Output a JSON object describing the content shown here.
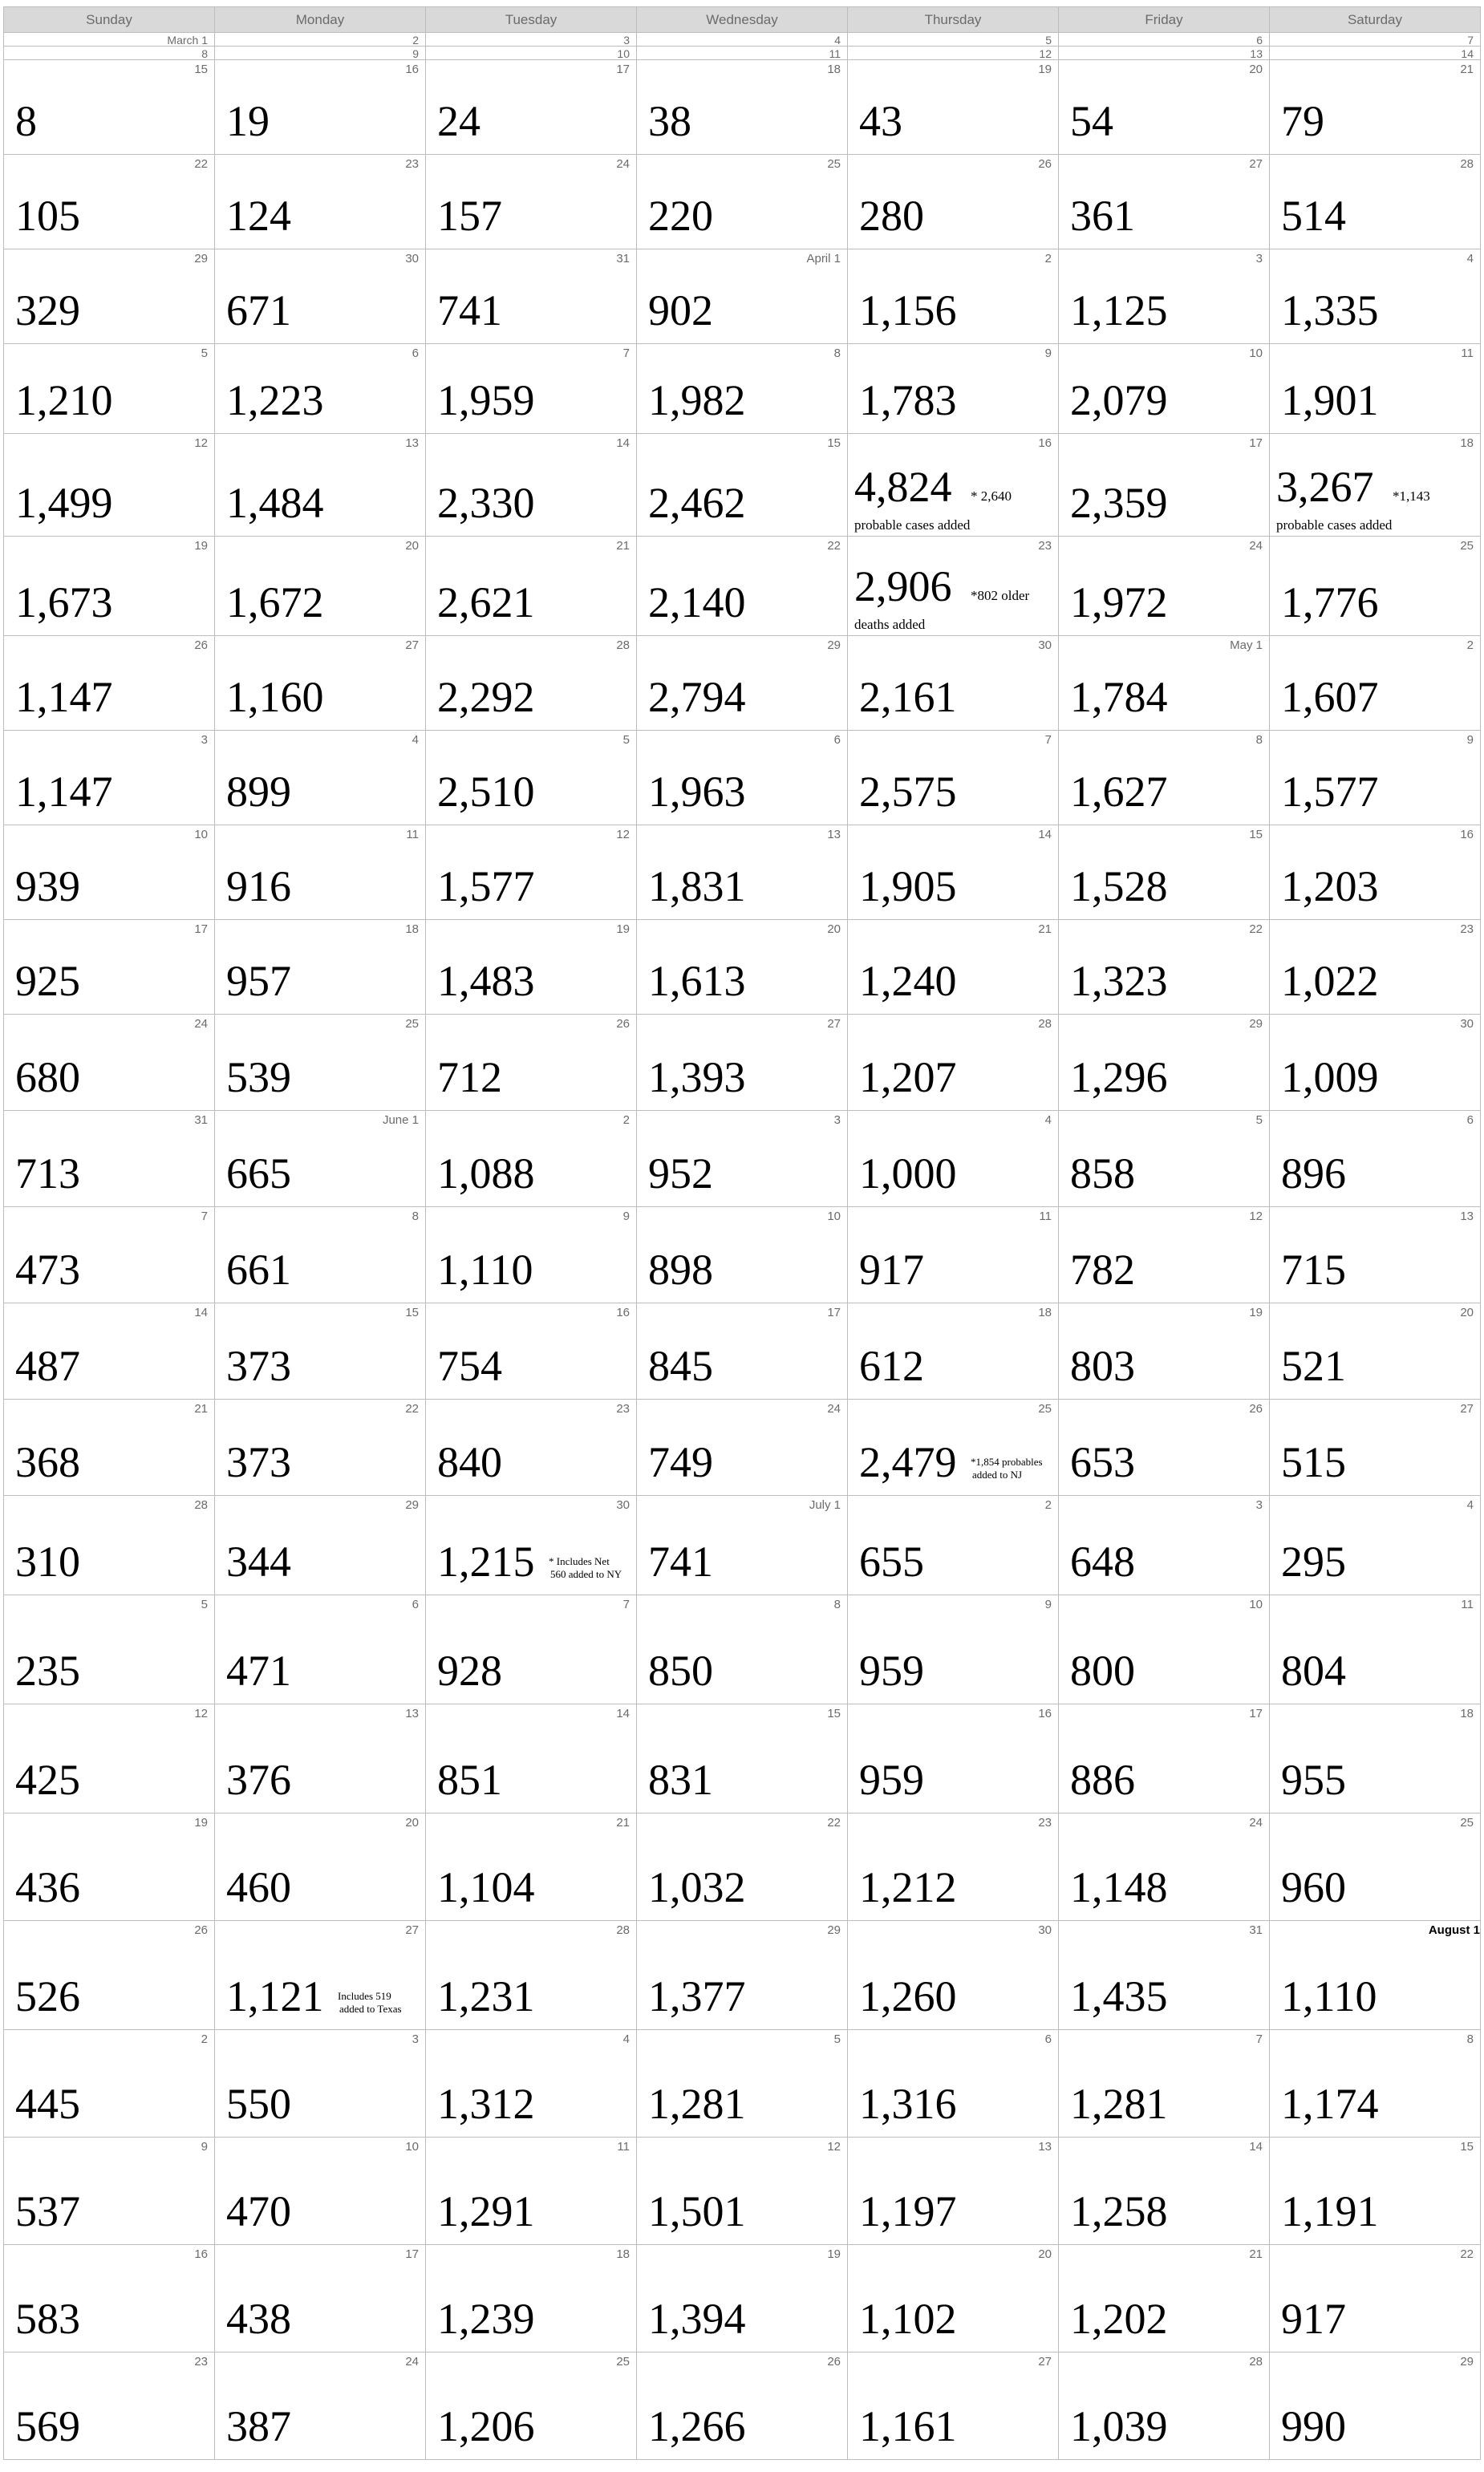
{
  "days": [
    "Sunday",
    "Monday",
    "Tuesday",
    "Wednesday",
    "Thursday",
    "Friday",
    "Saturday"
  ],
  "top_rows": [
    [
      "March 1",
      "2",
      "3",
      "4",
      "5",
      "6",
      "7"
    ],
    [
      "8",
      "9",
      "10",
      "11",
      "12",
      "13",
      "14"
    ]
  ],
  "weeks": [
    {
      "dates": [
        "15",
        "16",
        "17",
        "18",
        "19",
        "20",
        "21"
      ],
      "values": [
        "8",
        "19",
        "24",
        "38",
        "43",
        "54",
        "79"
      ]
    },
    {
      "dates": [
        "22",
        "23",
        "24",
        "25",
        "26",
        "27",
        "28"
      ],
      "values": [
        "105",
        "124",
        "157",
        "220",
        "280",
        "361",
        "514"
      ]
    },
    {
      "dates": [
        "29",
        "30",
        "31",
        "April 1",
        "2",
        "3",
        "4"
      ],
      "values": [
        "329",
        "671",
        "741",
        "902",
        "1,156",
        "1,125",
        "1,335"
      ]
    },
    {
      "dates": [
        "5",
        "6",
        "7",
        "8",
        "9",
        "10",
        "11"
      ],
      "values": [
        "1,210",
        "1,223",
        "1,959",
        "1,982",
        "1,783",
        "2,079",
        "1,901"
      ]
    },
    {
      "dates": [
        "12",
        "13",
        "14",
        "15",
        "16",
        "17",
        "18"
      ],
      "values": [
        "1,499",
        "1,484",
        "2,330",
        "2,462",
        "4,824",
        "2,359",
        "3,267"
      ],
      "notes": {
        "4": [
          "* 2,640",
          "probable cases added"
        ],
        "6": [
          "*1,143",
          "probable cases added"
        ]
      }
    },
    {
      "dates": [
        "19",
        "20",
        "21",
        "22",
        "23",
        "24",
        "25"
      ],
      "values": [
        "1,673",
        "1,672",
        "2,621",
        "2,140",
        "2,906",
        "1,972",
        "1,776"
      ],
      "notes": {
        "4": [
          "*802 older",
          "deaths added"
        ]
      }
    },
    {
      "dates": [
        "26",
        "27",
        "28",
        "29",
        "30",
        "May 1",
        "2"
      ],
      "values": [
        "1,147",
        "1,160",
        "2,292",
        "2,794",
        "2,161",
        "1,784",
        "1,607"
      ]
    },
    {
      "dates": [
        "3",
        "4",
        "5",
        "6",
        "7",
        "8",
        "9"
      ],
      "values": [
        "1,147",
        "899",
        "2,510",
        "1,963",
        "2,575",
        "1,627",
        "1,577"
      ]
    },
    {
      "dates": [
        "10",
        "11",
        "12",
        "13",
        "14",
        "15",
        "16"
      ],
      "values": [
        "939",
        "916",
        "1,577",
        "1,831",
        "1,905",
        "1,528",
        "1,203"
      ]
    },
    {
      "dates": [
        "17",
        "18",
        "19",
        "20",
        "21",
        "22",
        "23"
      ],
      "values": [
        "925",
        "957",
        "1,483",
        "1,613",
        "1,240",
        "1,323",
        "1,022"
      ]
    },
    {
      "dates": [
        "24",
        "25",
        "26",
        "27",
        "28",
        "29",
        "30"
      ],
      "values": [
        "680",
        "539",
        "712",
        "1,393",
        "1,207",
        "1,296",
        "1,009"
      ]
    },
    {
      "dates": [
        "31",
        "June 1",
        "2",
        "3",
        "4",
        "5",
        "6"
      ],
      "values": [
        "713",
        "665",
        "1,088",
        "952",
        "1,000",
        "858",
        "896"
      ]
    },
    {
      "dates": [
        "7",
        "8",
        "9",
        "10",
        "11",
        "12",
        "13"
      ],
      "values": [
        "473",
        "661",
        "1,110",
        "898",
        "917",
        "782",
        "715"
      ]
    },
    {
      "dates": [
        "14",
        "15",
        "16",
        "17",
        "18",
        "19",
        "20"
      ],
      "values": [
        "487",
        "373",
        "754",
        "845",
        "612",
        "803",
        "521"
      ]
    },
    {
      "dates": [
        "21",
        "22",
        "23",
        "24",
        "25",
        "26",
        "27"
      ],
      "values": [
        "368",
        "373",
        "840",
        "749",
        "2,479",
        "653",
        "515"
      ],
      "notes": {
        "4": [
          "*1,854 probables",
          "added to NJ"
        ]
      }
    },
    {
      "dates": [
        "28",
        "29",
        "30",
        "July 1",
        "2",
        "3",
        "4"
      ],
      "values": [
        "310",
        "344",
        "1,215",
        "741",
        "655",
        "648",
        "295"
      ],
      "notes": {
        "2": [
          "* Includes Net",
          "560 added to NY"
        ]
      }
    },
    {
      "dates": [
        "5",
        "6",
        "7",
        "8",
        "9",
        "10",
        "11"
      ],
      "values": [
        "235",
        "471",
        "928",
        "850",
        "959",
        "800",
        "804"
      ]
    },
    {
      "dates": [
        "12",
        "13",
        "14",
        "15",
        "16",
        "17",
        "18"
      ],
      "values": [
        "425",
        "376",
        "851",
        "831",
        "959",
        "886",
        "955"
      ]
    },
    {
      "dates": [
        "19",
        "20",
        "21",
        "22",
        "23",
        "24",
        "25"
      ],
      "values": [
        "436",
        "460",
        "1,104",
        "1,032",
        "1,212",
        "1,148",
        "960"
      ]
    },
    {
      "dates": [
        "26",
        "27",
        "28",
        "29",
        "30",
        "31",
        "August 1"
      ],
      "values": [
        "526",
        "1,121",
        "1,231",
        "1,377",
        "1,260",
        "1,435",
        "1,110"
      ],
      "notes": {
        "1": [
          "Includes 519",
          "added to Texas"
        ]
      }
    },
    {
      "dates": [
        "2",
        "3",
        "4",
        "5",
        "6",
        "7",
        "8"
      ],
      "values": [
        "445",
        "550",
        "1,312",
        "1,281",
        "1,316",
        "1,281",
        "1,174"
      ]
    },
    {
      "dates": [
        "9",
        "10",
        "11",
        "12",
        "13",
        "14",
        "15"
      ],
      "values": [
        "537",
        "470",
        "1,291",
        "1,501",
        "1,197",
        "1,258",
        "1,191"
      ]
    },
    {
      "dates": [
        "16",
        "17",
        "18",
        "19",
        "20",
        "21",
        "22"
      ],
      "values": [
        "583",
        "438",
        "1,239",
        "1,394",
        "1,102",
        "1,202",
        "917"
      ]
    },
    {
      "dates": [
        "23",
        "24",
        "25",
        "26",
        "27",
        "28",
        "29"
      ],
      "values": [
        "569",
        "387",
        "1,206",
        "1,266",
        "1,161",
        "1,039",
        "990"
      ]
    }
  ]
}
